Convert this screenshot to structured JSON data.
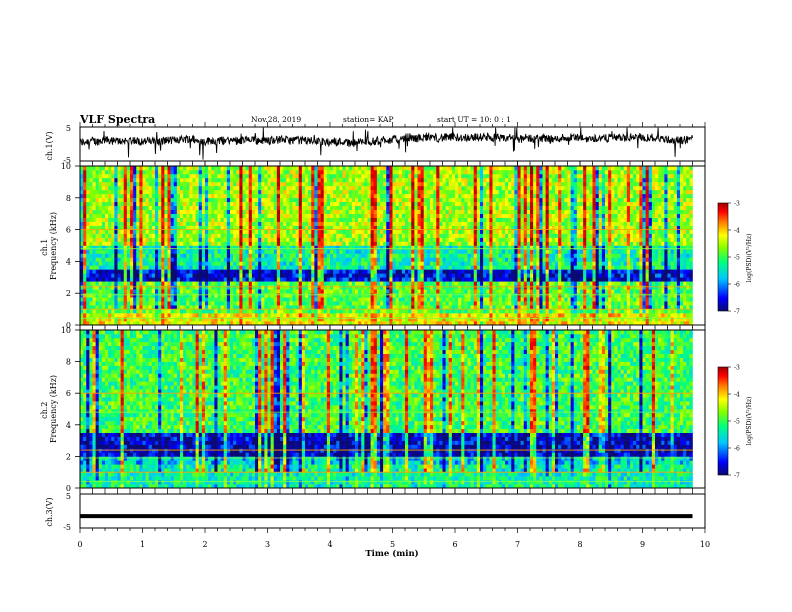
{
  "header": {
    "title": "VLF Spectra",
    "date": "Nov.28, 2019",
    "station": "station= KAP",
    "start": "start  UT =   10: 0  : 1"
  },
  "colors": {
    "spectrum": [
      "#0a0a70",
      "#0000ff",
      "#00c8ff",
      "#00ff80",
      "#80ff00",
      "#ffff00",
      "#ff8000",
      "#ff0000",
      "#a00000"
    ],
    "trace": "#000000",
    "frame": "#000000"
  },
  "chart_data": [
    {
      "type": "line",
      "panel": "ch1-waveform",
      "ylabel": "ch.1(V)",
      "ylim": [
        -5,
        5
      ],
      "y_ticks": [
        "5",
        "-5"
      ],
      "xlim": [
        0,
        10
      ],
      "description_values": {
        "mean": 0.3,
        "range": [
          -3,
          4
        ]
      }
    },
    {
      "type": "heatmap",
      "panel": "ch1-spectrogram",
      "ylabel": "ch.1 Frequency (kHz)",
      "ylim": [
        0,
        10
      ],
      "y_ticks": [
        "0",
        "2",
        "4",
        "6",
        "8",
        "10"
      ],
      "xlim": [
        0,
        10
      ],
      "data_end_min": 9.8,
      "colorbar": {
        "label": "log(PSD)(V²/Hz)",
        "range": [
          -7,
          -3
        ],
        "ticks": [
          "-3",
          "-4",
          "-5",
          "-6",
          "-7"
        ]
      },
      "bands": [
        {
          "from": 0.0,
          "to": 0.7,
          "level": -4.6
        },
        {
          "from": 0.7,
          "to": 2.7,
          "level": -5.2
        },
        {
          "from": 2.7,
          "to": 3.5,
          "level": -6.6
        },
        {
          "from": 3.5,
          "to": 5.0,
          "level": -5.6
        },
        {
          "from": 5.0,
          "to": 10.0,
          "level": -4.9
        }
      ]
    },
    {
      "type": "heatmap",
      "panel": "ch2-spectrogram",
      "ylabel": "ch.2 Frequency (kHz)",
      "ylim": [
        0,
        10
      ],
      "y_ticks": [
        "0",
        "2",
        "4",
        "6",
        "8",
        "10"
      ],
      "xlim": [
        0,
        10
      ],
      "data_end_min": 9.8,
      "colorbar": {
        "label": "log(PSD)(V²/Hz)",
        "range": [
          -7,
          -3
        ],
        "ticks": [
          "-3",
          "-4",
          "-5",
          "-6",
          "-7"
        ]
      },
      "bands": [
        {
          "from": 0.0,
          "to": 1.5,
          "level": -5.6
        },
        {
          "from": 1.5,
          "to": 2.0,
          "level": -5.9
        },
        {
          "from": 2.0,
          "to": 3.5,
          "level": -6.7
        },
        {
          "from": 3.5,
          "to": 10.0,
          "level": -5.3
        }
      ]
    },
    {
      "type": "line",
      "panel": "ch3-waveform",
      "ylabel": "ch.3(V)",
      "ylim": [
        -5,
        5
      ],
      "y_ticks": [
        "5",
        "-5"
      ],
      "xlim": [
        0,
        10
      ],
      "values_const": -1.5
    }
  ],
  "xaxis": {
    "label": "Time  (min)",
    "ticks": [
      "0",
      "1",
      "2",
      "3",
      "4",
      "5",
      "6",
      "7",
      "8",
      "9",
      "10"
    ]
  }
}
